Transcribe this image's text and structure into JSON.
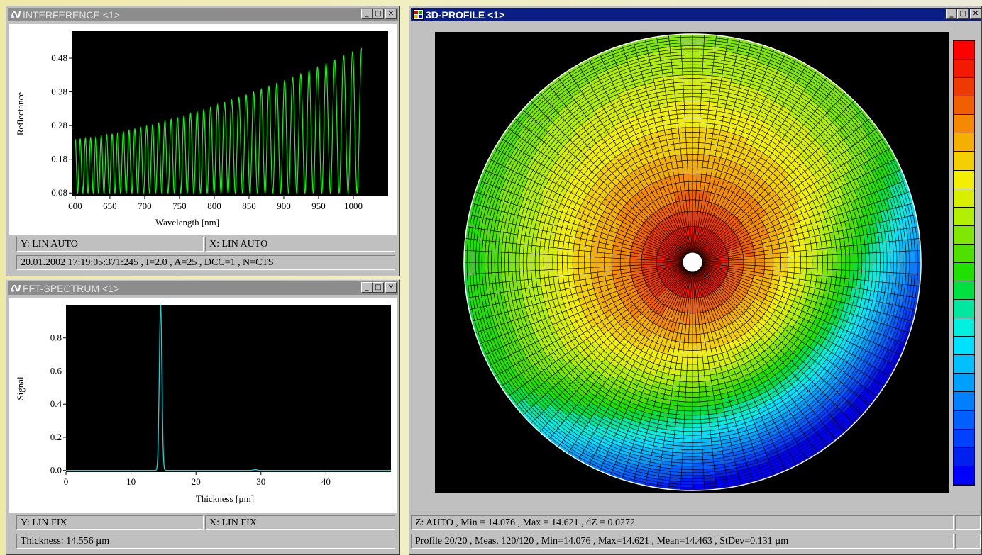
{
  "interference": {
    "title": "INTERFERENCE <1>",
    "ylabel": "Reflectance",
    "xlabel": "Wavelength [nm]",
    "status_y": "Y: LIN AUTO",
    "status_x": "X: LIN AUTO",
    "info": "20.01.2002 17:19:05:371:245 , I=2.0 , A=25 , DCC=1 , N=CTS"
  },
  "fft": {
    "title": "FFT-SPECTRUM <1>",
    "ylabel": "Signal",
    "xlabel": "Thickness [µm]",
    "status_y": "Y: LIN FIX",
    "status_x": "X: LIN FIX",
    "info": "Thickness: 14.556 µm"
  },
  "profile": {
    "title": "3D-PROFILE <1>",
    "status1": "Z: AUTO , Min = 14.076 , Max = 14.621 , dZ = 0.0272",
    "status2": "Profile 20/20 , Meas. 120/120 , Min=14.076 , Max=14.621 , Mean=14.463 , StDev=0.131 µm",
    "colorscale": [
      "#ff0000",
      "#f21a00",
      "#ec3a00",
      "#f06000",
      "#f48a00",
      "#f4b000",
      "#f4d000",
      "#f2f000",
      "#d8f000",
      "#b0f000",
      "#80e800",
      "#50e000",
      "#20e000",
      "#00e040",
      "#00e8a0",
      "#00f0e0",
      "#00e0ff",
      "#00c0ff",
      "#00a0ff",
      "#0080ff",
      "#0060ff",
      "#0040ff",
      "#0020f0",
      "#0000ff"
    ]
  },
  "chart_data": [
    {
      "type": "line",
      "title": "INTERFERENCE <1>",
      "xlabel": "Wavelength [nm]",
      "ylabel": "Reflectance",
      "xlim": [
        595,
        1050
      ],
      "ylim": [
        0.07,
        0.56
      ],
      "xticks": [
        "600",
        "650",
        "700",
        "750",
        "800",
        "850",
        "900",
        "950",
        "1000"
      ],
      "yticks": [
        "0.08",
        "0.18",
        "0.28",
        "0.38",
        "0.48"
      ],
      "series": [
        {
          "color": "#00ff00",
          "x_start": 600,
          "x_end": 1012,
          "y_min": 0.08,
          "y_max_start": 0.24,
          "y_max_end": 0.51,
          "fringes": 42
        }
      ]
    },
    {
      "type": "line",
      "title": "FFT-SPECTRUM <1>",
      "xlabel": "Thickness [µm]",
      "ylabel": "Signal",
      "xlim": [
        0,
        50
      ],
      "ylim": [
        -0.01,
        1.0
      ],
      "xticks": [
        "0",
        "10",
        "20",
        "30",
        "40"
      ],
      "yticks": [
        "0.0",
        "0.2",
        "0.4",
        "0.6",
        "0.8"
      ],
      "series": [
        {
          "color": "#00e0e0",
          "peak_x": 14.556,
          "peak_y": 1.0,
          "secondary_peak_x": 29.1,
          "secondary_peak_y": 0.005
        }
      ]
    }
  ]
}
